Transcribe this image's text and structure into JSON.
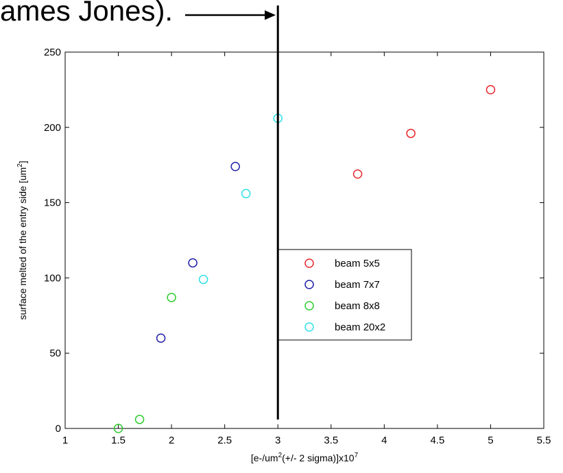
{
  "caption": "ames Jones).",
  "chart_data": {
    "type": "scatter",
    "title": "",
    "xlabel_main": "[e-/um",
    "xlabel_sup": "2",
    "xlabel_mid": "(+/- 2 sigma)]x10",
    "xlabel_exp": "7",
    "ylabel_main": "surface melted of the entry side [um",
    "ylabel_sup": "2",
    "ylabel_end": "]",
    "xlim": [
      1,
      5.5
    ],
    "ylim": [
      0,
      250
    ],
    "xticks": [
      1,
      1.5,
      2,
      2.5,
      3,
      3.5,
      4,
      4.5,
      5,
      5.5
    ],
    "xtick_labels": [
      "1",
      "1.5",
      "2",
      "2.5",
      "3",
      "3.5",
      "4",
      "4.5",
      "5",
      "5.5"
    ],
    "yticks": [
      0,
      50,
      100,
      150,
      200,
      250
    ],
    "ytick_labels": [
      "0",
      "50",
      "100",
      "150",
      "200",
      "250"
    ],
    "grid": false,
    "legend_placement": "center",
    "marker": "circle-open",
    "series": [
      {
        "name": "beam 5x5",
        "color": "#e8262c",
        "points": [
          [
            3.75,
            169
          ],
          [
            4.25,
            196
          ],
          [
            5.0,
            225
          ]
        ]
      },
      {
        "name": "beam 7x7",
        "color": "#1f1fa8",
        "points": [
          [
            1.9,
            60
          ],
          [
            2.2,
            110
          ],
          [
            2.6,
            174
          ]
        ]
      },
      {
        "name": "beam 8x8",
        "color": "#2ecc2e",
        "points": [
          [
            1.5,
            0
          ],
          [
            1.7,
            6
          ],
          [
            2.0,
            87
          ]
        ]
      },
      {
        "name": "beam 20x2",
        "color": "#2fe0e8",
        "points": [
          [
            2.3,
            99
          ],
          [
            2.7,
            156
          ],
          [
            3.0,
            206
          ]
        ]
      }
    ],
    "annotations": {
      "vertical_line_x": 3.0,
      "line_color": "#000000"
    }
  }
}
